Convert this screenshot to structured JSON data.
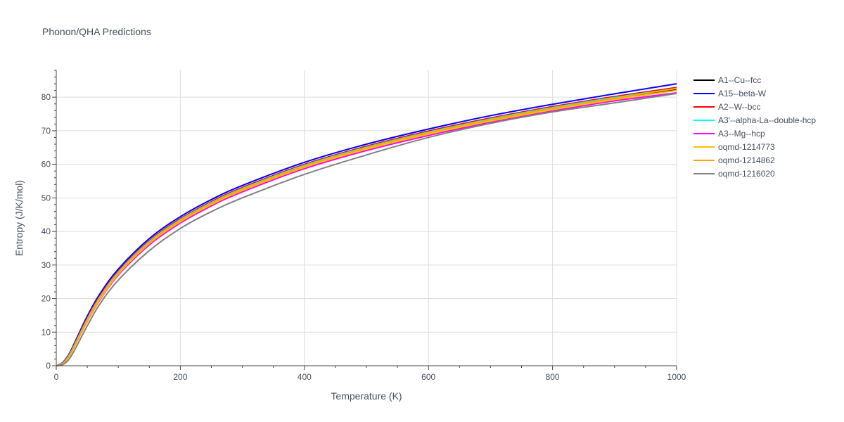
{
  "chart_data": {
    "type": "line",
    "title": "Phonon/QHA Predictions",
    "xlabel": "Temperature (K)",
    "ylabel": "Entropy (J/K/mol)",
    "xlim": [
      0,
      1000
    ],
    "ylim": [
      0,
      88
    ],
    "xticks": [
      0,
      200,
      400,
      600,
      800,
      1000
    ],
    "yticks": [
      0,
      10,
      20,
      30,
      40,
      50,
      60,
      70,
      80
    ],
    "grid": true,
    "legend_position": "right",
    "x": [
      0,
      10,
      20,
      30,
      50,
      70,
      100,
      150,
      200,
      250,
      300,
      400,
      500,
      600,
      700,
      800,
      900,
      1000
    ],
    "series": [
      {
        "name": "A1--Cu--fcc",
        "color": "#000000",
        "values": [
          0,
          0.8,
          3.0,
          6.5,
          14.0,
          20.5,
          28.0,
          37.0,
          43.5,
          48.6,
          52.8,
          59.6,
          65.0,
          69.5,
          73.3,
          76.7,
          79.7,
          82.4
        ]
      },
      {
        "name": "A15--beta-W",
        "color": "#0000ff",
        "values": [
          0,
          0.9,
          3.3,
          7.0,
          14.8,
          21.3,
          28.8,
          37.9,
          44.4,
          49.5,
          53.7,
          60.6,
          66.0,
          70.5,
          74.5,
          77.9,
          81.0,
          84.0
        ]
      },
      {
        "name": "A2--W--bcc",
        "color": "#ff0000",
        "values": [
          0,
          0.7,
          3.0,
          6.6,
          14.2,
          20.7,
          28.2,
          37.3,
          43.8,
          48.9,
          53.1,
          60.0,
          65.4,
          69.9,
          73.8,
          77.2,
          80.2,
          82.9
        ]
      },
      {
        "name": "A3'--alpha-La--double-hcp",
        "color": "#00ffff",
        "values": [
          0,
          0.7,
          2.9,
          6.4,
          13.9,
          20.4,
          27.9,
          37.0,
          43.5,
          48.6,
          52.8,
          59.7,
          65.1,
          69.6,
          73.5,
          76.9,
          79.9,
          82.6
        ]
      },
      {
        "name": "A3--Mg--hcp",
        "color": "#ff00ff",
        "values": [
          0,
          0.6,
          2.7,
          6.0,
          13.2,
          19.5,
          27.0,
          36.0,
          42.5,
          47.6,
          51.8,
          58.7,
          64.1,
          68.6,
          72.5,
          75.9,
          78.9,
          81.3
        ]
      },
      {
        "name": "oqmd-1214773",
        "color": "#ffbf00",
        "values": [
          0,
          0.6,
          2.6,
          5.9,
          13.3,
          19.7,
          27.3,
          36.4,
          42.9,
          48.0,
          52.2,
          59.1,
          64.5,
          69.0,
          72.9,
          76.3,
          79.3,
          82.0
        ]
      },
      {
        "name": "oqmd-1214862",
        "color": "#ffa500",
        "values": [
          0,
          0.7,
          2.8,
          6.2,
          13.7,
          20.2,
          27.7,
          36.8,
          43.3,
          48.4,
          52.6,
          59.5,
          64.9,
          69.4,
          73.3,
          76.7,
          79.7,
          82.6
        ]
      },
      {
        "name": "oqmd-1216020",
        "color": "#808080",
        "values": [
          0,
          0.3,
          1.8,
          4.8,
          11.9,
          18.3,
          25.5,
          34.3,
          40.9,
          45.9,
          50.0,
          57.0,
          62.8,
          68.0,
          72.2,
          75.6,
          78.3,
          81.1
        ]
      }
    ]
  }
}
